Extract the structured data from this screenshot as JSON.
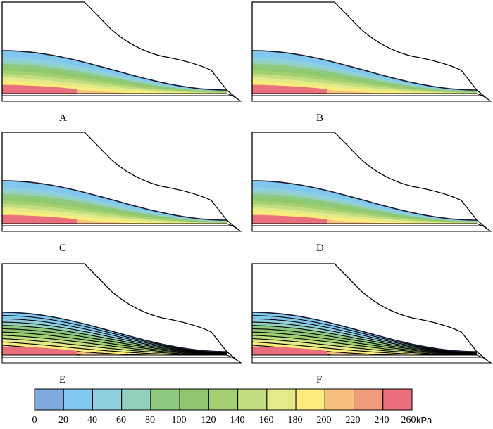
{
  "panels": [
    {
      "label": "A",
      "style": "smooth"
    },
    {
      "label": "B",
      "style": "smooth"
    },
    {
      "label": "C",
      "style": "smooth"
    },
    {
      "label": "D",
      "style": "smooth"
    },
    {
      "label": "E",
      "style": "contoured"
    },
    {
      "label": "F",
      "style": "contoured"
    }
  ],
  "legend": {
    "unit": "kPa",
    "ticks": [
      "0",
      "20",
      "40",
      "60",
      "80",
      "100",
      "120",
      "140",
      "160",
      "180",
      "200",
      "220",
      "240",
      "260"
    ],
    "colors": [
      "#7eaadf",
      "#82c8ee",
      "#8ed0e0",
      "#94d0be",
      "#8ec980",
      "#90c770",
      "#a3d070",
      "#c2de80",
      "#e5ea88",
      "#fbec7c",
      "#f7c07e",
      "#f09a7e",
      "#ea6f7c"
    ]
  }
}
